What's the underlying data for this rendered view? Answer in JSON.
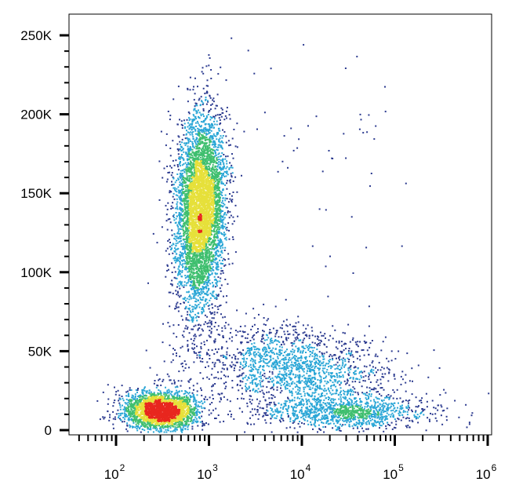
{
  "chart_data": {
    "type": "scatter",
    "title": "",
    "xlabel": "",
    "ylabel": "",
    "x_scale": "log",
    "xlim": [
      30,
      1000000
    ],
    "ylim": [
      0,
      262143
    ],
    "grid": false,
    "density_colormap": [
      "#2b3a8f",
      "#2aa6d6",
      "#3fbf6f",
      "#e6e03a",
      "#e8271f"
    ],
    "y_ticks": [
      {
        "value": 0,
        "label": "0"
      },
      {
        "value": 50000,
        "label": "50K"
      },
      {
        "value": 100000,
        "label": "100K"
      },
      {
        "value": 150000,
        "label": "150K"
      },
      {
        "value": 200000,
        "label": "200K"
      },
      {
        "value": 250000,
        "label": "250K"
      }
    ],
    "x_ticks": [
      {
        "value": 100,
        "base": "10",
        "exp": "2"
      },
      {
        "value": 1000,
        "base": "10",
        "exp": "3"
      },
      {
        "value": 10000,
        "base": "10",
        "exp": "4"
      },
      {
        "value": 100000,
        "base": "10",
        "exp": "5"
      },
      {
        "value": 1000000,
        "base": "10",
        "exp": "6"
      }
    ],
    "populations": [
      {
        "center_x": 800,
        "center_y": 140000,
        "sd_logx": 0.13,
        "sd_y": 30000,
        "tilt": 0.1,
        "points": 5200
      },
      {
        "center_x": 300,
        "center_y": 13000,
        "sd_logx": 0.2,
        "sd_y": 6000,
        "tilt": 0,
        "points": 2600
      },
      {
        "center_x": 8000,
        "center_y": 40000,
        "sd_logx": 0.5,
        "sd_y": 14000,
        "tilt": -0.3,
        "points": 1700
      },
      {
        "center_x": 30000,
        "center_y": 12000,
        "sd_logx": 0.45,
        "sd_y": 5000,
        "tilt": 0,
        "points": 1100
      },
      {
        "center_x": 20000,
        "center_y": 160000,
        "sd_logx": 0.4,
        "sd_y": 45000,
        "tilt": 0,
        "points": 50
      }
    ]
  }
}
